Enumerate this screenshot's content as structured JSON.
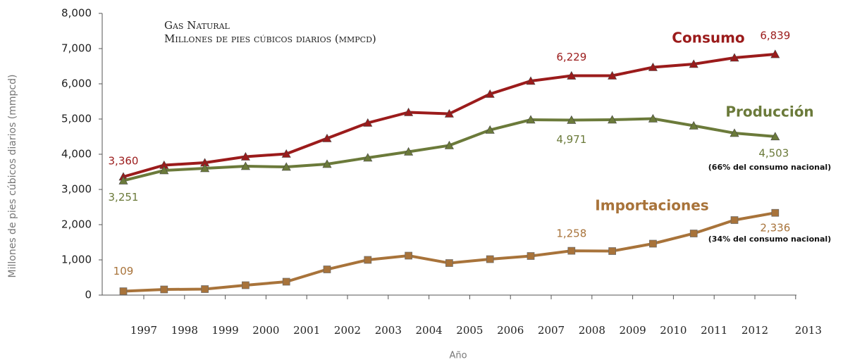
{
  "chart_data": {
    "type": "line",
    "title": "Gas Natural",
    "subtitle": "Millones de pies cúbicos diarios (mmpcd)",
    "y_label": "Millones de pies cúbicos diarios (mmpcd)",
    "x_label": "Año",
    "categories": [
      "1997",
      "1998",
      "1999",
      "2000",
      "2001",
      "2002",
      "2003",
      "2004",
      "2005",
      "2006",
      "2007",
      "2008",
      "2009",
      "2010",
      "2011",
      "2012",
      "2013"
    ],
    "ylim": [
      0,
      8000
    ],
    "yticks": [
      {
        "value": 0,
        "label": "0"
      },
      {
        "value": 1000,
        "label": "1,000"
      },
      {
        "value": 2000,
        "label": "2,000"
      },
      {
        "value": 3000,
        "label": "3,000"
      },
      {
        "value": 4000,
        "label": "4,000"
      },
      {
        "value": 5000,
        "label": "5,000"
      },
      {
        "value": 6000,
        "label": "6,000"
      },
      {
        "value": 7000,
        "label": "7,000"
      },
      {
        "value": 8000,
        "label": "8,000"
      }
    ],
    "series": [
      {
        "name": "Consumo",
        "color": "#9b1b1b",
        "marker": "triangle",
        "values": [
          3360,
          3690,
          3760,
          3930,
          4010,
          4450,
          4890,
          5190,
          5150,
          5710,
          6080,
          6229,
          6230,
          6470,
          6560,
          6740,
          6839
        ],
        "value_labels": [
          "3,360",
          null,
          null,
          null,
          null,
          null,
          null,
          null,
          null,
          null,
          null,
          "6,229",
          null,
          null,
          null,
          null,
          "6,839"
        ],
        "note": null
      },
      {
        "name": "Producción",
        "color": "#6b7a3a",
        "marker": "triangle",
        "values": [
          3251,
          3540,
          3600,
          3660,
          3640,
          3720,
          3900,
          4070,
          4250,
          4690,
          4980,
          4971,
          4980,
          5010,
          4810,
          4600,
          4503
        ],
        "value_labels": [
          "3,251",
          null,
          null,
          null,
          null,
          null,
          null,
          null,
          null,
          null,
          null,
          "4,971",
          null,
          null,
          null,
          null,
          "4,503"
        ],
        "note": "(66% del consumo nacional)"
      },
      {
        "name": "Importaciones",
        "color": "#a8733a",
        "marker": "square",
        "values": [
          109,
          160,
          170,
          280,
          380,
          730,
          1000,
          1120,
          910,
          1020,
          1110,
          1258,
          1250,
          1460,
          1750,
          2130,
          2336
        ],
        "value_labels": [
          "109",
          null,
          null,
          null,
          null,
          null,
          null,
          null,
          null,
          null,
          null,
          "1,258",
          null,
          null,
          null,
          null,
          "2,336"
        ],
        "note": "(34% del consumo nacional)"
      }
    ]
  }
}
